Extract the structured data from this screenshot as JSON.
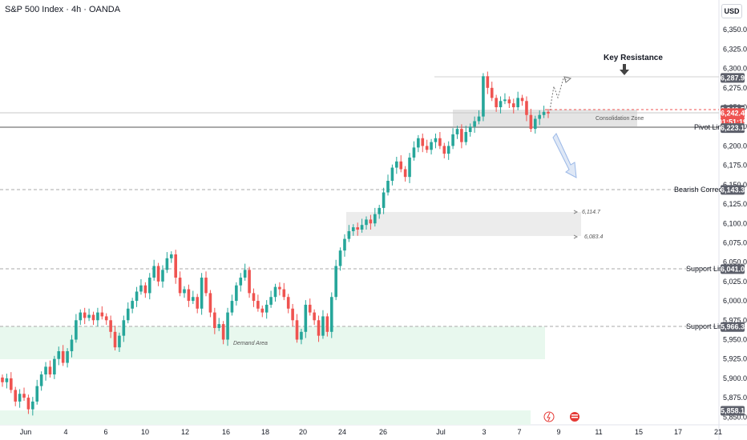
{
  "header": {
    "title": "S&P 500 Index · 4h · OANDA",
    "currency": "USD"
  },
  "chart_data": {
    "type": "candlestick",
    "title": "S&P 500 Index · 4h · OANDA",
    "ylim": [
      5840,
      6375
    ],
    "y_ticks": [
      "6,350.0",
      "6,325.0",
      "6,300.0",
      "6,275.0",
      "6,250.0",
      "6,225.0",
      "6,200.0",
      "6,175.0",
      "6,150.0",
      "6,125.0",
      "6,100.0",
      "6,075.0",
      "6,050.0",
      "6,025.0",
      "6,000.0",
      "5,975.0",
      "5,950.0",
      "5,925.0",
      "5,900.0",
      "5,875.0",
      "5,850.0"
    ],
    "x_ticks": [
      "Jun",
      "4",
      "6",
      "10",
      "12",
      "16",
      "18",
      "20",
      "24",
      "26",
      "Jul",
      "3",
      "7",
      "9",
      "11",
      "15",
      "17",
      "21"
    ],
    "series": [
      {
        "values": [
          5895,
          5900,
          5885,
          5870,
          5880,
          5875,
          5860,
          5870,
          5890,
          5905,
          5915,
          5905,
          5925,
          5935,
          5920,
          5935,
          5950,
          5975,
          5985,
          5978,
          5982,
          5975,
          5985,
          5980,
          5975,
          5960,
          5940,
          5955,
          5975,
          5990,
          6000,
          6012,
          6020,
          6010,
          6030,
          6045,
          6025,
          6040,
          6055,
          6060,
          6030,
          6010,
          6015,
          6000,
          6005,
          5990,
          6030,
          6010,
          5985,
          5965,
          5970,
          5950,
          5985,
          6000,
          6020,
          6030,
          6040,
          6010,
          6000,
          5990,
          5985,
          5995,
          6005,
          6018,
          6015,
          6005,
          5990,
          5975,
          5950,
          5960,
          5995,
          5985,
          5975,
          5955,
          5980,
          5960,
          6005,
          6045,
          6065,
          6080,
          6090,
          6095,
          6092,
          6098,
          6105,
          6100,
          6112,
          6120,
          6140,
          6155,
          6172,
          6180,
          6170,
          6160,
          6185,
          6198,
          6210,
          6200,
          6195,
          6205,
          6210,
          6200,
          6190,
          6200,
          6215,
          6222,
          6205,
          6218,
          6225,
          6232,
          6238,
          6290,
          6275,
          6262,
          6250,
          6258,
          6260,
          6255,
          6250,
          6262,
          6258,
          6240,
          6222,
          6235,
          6240,
          6244,
          6242
        ]
      }
    ],
    "price_labels": [
      {
        "text": "6,287.9",
        "kind": "grey"
      },
      {
        "text": "6,246.5",
        "kind": "grey"
      },
      {
        "text": "6,242.4",
        "kind": "red"
      },
      {
        "text": "01:51:19",
        "kind": "red"
      },
      {
        "text": "6,223.1",
        "kind": "grey"
      },
      {
        "text": "6,143.3",
        "kind": "grey"
      },
      {
        "text": "6,041.0",
        "kind": "grey"
      },
      {
        "text": "5,966.3",
        "kind": "grey"
      },
      {
        "text": "5,858.1",
        "kind": "grey"
      }
    ],
    "annotations": {
      "key_resistance": "Key Resistance",
      "consolidation_zone": "Consolidation Zone",
      "pivot_line": "Pivot Line",
      "bearish_correction": "Bearish Correction",
      "support_line_1": "Support Line",
      "support_line_2": "Support Line",
      "demand_area": "Demand Area",
      "gap_high": "6,114.7",
      "gap_low": "6,083.4"
    },
    "colors": {
      "up": "#26a69a",
      "down": "#ef5350",
      "accent_blue": "#2962ff",
      "zone": "#e6e6e6",
      "demand": "#e8f8ee"
    }
  }
}
